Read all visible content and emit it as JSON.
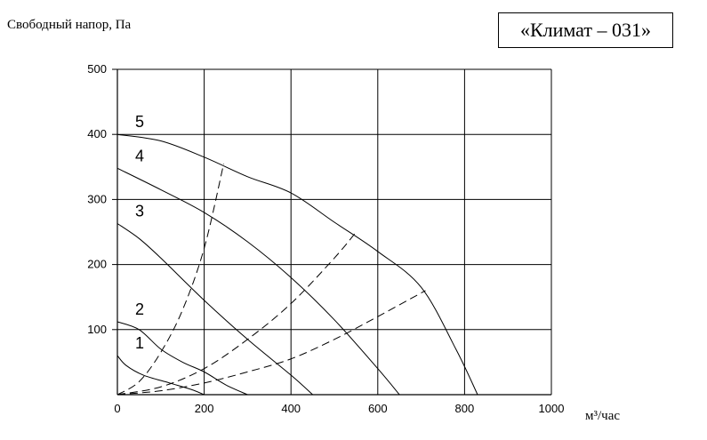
{
  "header": {
    "ylabel": "Свободный напор, Па",
    "xunit": "м³/час",
    "model": "«Климат – 031»"
  },
  "chart_data": {
    "type": "line",
    "ylabel": "Свободный напор, Па",
    "xlabel": "м³/час",
    "xlim": [
      0,
      1000
    ],
    "ylim": [
      0,
      500
    ],
    "x_ticks": [
      0,
      200,
      400,
      600,
      800,
      1000
    ],
    "y_ticks": [
      100,
      200,
      300,
      400,
      500
    ],
    "grid": true,
    "series": [
      {
        "name": "1",
        "style": "solid",
        "x": [
          0,
          20,
          60,
          120,
          170,
          200
        ],
        "y": [
          60,
          45,
          30,
          18,
          8,
          0
        ]
      },
      {
        "name": "2",
        "style": "solid",
        "x": [
          0,
          50,
          100,
          150,
          200,
          250,
          300
        ],
        "y": [
          112,
          100,
          70,
          50,
          35,
          15,
          0
        ]
      },
      {
        "name": "3",
        "style": "solid",
        "x": [
          0,
          50,
          100,
          200,
          300,
          400,
          450
        ],
        "y": [
          263,
          240,
          210,
          145,
          85,
          30,
          0
        ]
      },
      {
        "name": "4",
        "style": "solid",
        "x": [
          0,
          100,
          200,
          300,
          400,
          500,
          600,
          650
        ],
        "y": [
          348,
          315,
          280,
          235,
          180,
          115,
          40,
          0
        ]
      },
      {
        "name": "5",
        "style": "solid",
        "x": [
          0,
          100,
          200,
          300,
          400,
          500,
          600,
          700,
          780,
          830
        ],
        "y": [
          400,
          390,
          365,
          335,
          310,
          265,
          220,
          165,
          70,
          0
        ]
      },
      {
        "name": "",
        "style": "dashed",
        "x": [
          0,
          50,
          100,
          150,
          200,
          245
        ],
        "y": [
          0,
          20,
          65,
          130,
          225,
          355
        ]
      },
      {
        "name": "",
        "style": "dashed",
        "x": [
          0,
          100,
          200,
          300,
          400,
          500,
          550
        ],
        "y": [
          0,
          12,
          40,
          85,
          140,
          210,
          250
        ]
      },
      {
        "name": "",
        "style": "dashed",
        "x": [
          0,
          100,
          200,
          300,
          400,
          500,
          600,
          710
        ],
        "y": [
          0,
          6,
          18,
          35,
          55,
          85,
          120,
          160
        ]
      }
    ]
  }
}
